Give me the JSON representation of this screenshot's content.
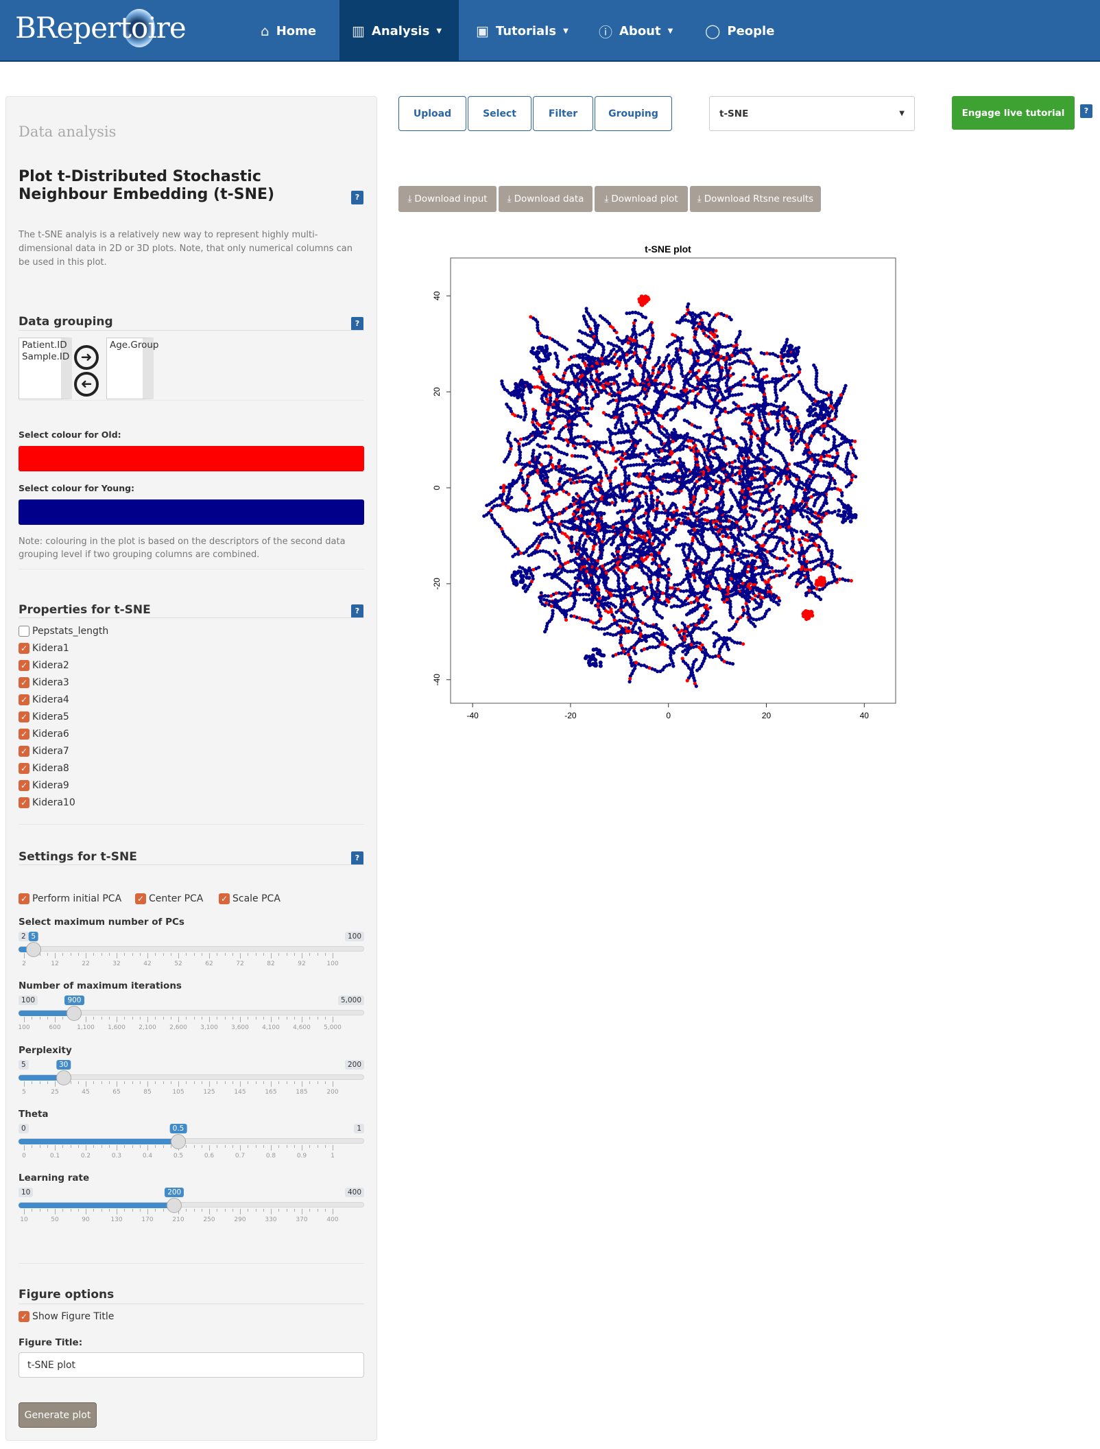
{
  "nav": {
    "brand": "BRepertoire",
    "brand_left": "BRepert",
    "brand_right": "ire",
    "items": [
      {
        "label": "Home",
        "icon": "home-icon",
        "dropdown": false
      },
      {
        "label": "Analysis",
        "icon": "bar-chart-icon",
        "dropdown": true,
        "active": true
      },
      {
        "label": "Tutorials",
        "icon": "film-icon",
        "dropdown": true
      },
      {
        "label": "About",
        "icon": "info-icon",
        "dropdown": true
      },
      {
        "label": "People",
        "icon": "user-icon",
        "dropdown": false
      }
    ],
    "colors": {
      "bar": "#2a65a3",
      "active": "#0a3f70"
    }
  },
  "sidebar": {
    "heading": "Data analysis",
    "title": "Plot t-Distributed Stochastic Neighbour Embedding (t-SNE)",
    "help": "?",
    "description": "The t-SNE analyis is a relatively new way to represent highly multi-dimensional data in 2D or 3D plots. Note, that only numerical columns can be used in this plot.",
    "grouping": {
      "header": "Data grouping",
      "available": [
        "Patient.ID",
        "Sample.ID"
      ],
      "selected": [
        "Age.Group"
      ],
      "colour_old_label": "Select colour for Old:",
      "colour_old": "#ff0000",
      "colour_young_label": "Select colour for Young:",
      "colour_young": "#00008b",
      "note": "Note: colouring in the plot is based on the descriptors of the second data grouping level if two grouping columns are combined."
    },
    "properties": {
      "header": "Properties for t-SNE",
      "items": [
        {
          "label": "Pepstats_length",
          "checked": false
        },
        {
          "label": "Kidera1",
          "checked": true
        },
        {
          "label": "Kidera2",
          "checked": true
        },
        {
          "label": "Kidera3",
          "checked": true
        },
        {
          "label": "Kidera4",
          "checked": true
        },
        {
          "label": "Kidera5",
          "checked": true
        },
        {
          "label": "Kidera6",
          "checked": true
        },
        {
          "label": "Kidera7",
          "checked": true
        },
        {
          "label": "Kidera8",
          "checked": true
        },
        {
          "label": "Kidera9",
          "checked": true
        },
        {
          "label": "Kidera10",
          "checked": true
        }
      ]
    },
    "settings": {
      "header": "Settings for t-SNE",
      "checks": [
        {
          "label": "Perform initial PCA",
          "checked": true
        },
        {
          "label": "Center PCA",
          "checked": true
        },
        {
          "label": "Scale PCA",
          "checked": true
        }
      ],
      "sliders": [
        {
          "label": "Select maximum number of PCs",
          "min": 2,
          "max": 100,
          "value": 5,
          "min_text": "2",
          "max_text": "100",
          "value_text": "5",
          "ticks": [
            "2",
            "12",
            "22",
            "32",
            "42",
            "52",
            "62",
            "72",
            "82",
            "92",
            "100"
          ]
        },
        {
          "label": "Number of maximum iterations",
          "min": 100,
          "max": 5000,
          "value": 900,
          "min_text": "100",
          "max_text": "5,000",
          "value_text": "900",
          "ticks": [
            "100",
            "600",
            "1,100",
            "1,600",
            "2,100",
            "2,600",
            "3,100",
            "3,600",
            "4,100",
            "4,600",
            "5,000"
          ]
        },
        {
          "label": "Perplexity",
          "min": 5,
          "max": 200,
          "value": 30,
          "min_text": "5",
          "max_text": "200",
          "value_text": "30",
          "ticks": [
            "5",
            "25",
            "45",
            "65",
            "85",
            "105",
            "125",
            "145",
            "165",
            "185",
            "200"
          ]
        },
        {
          "label": "Theta",
          "min": 0,
          "max": 1,
          "value": 0.5,
          "min_text": "0",
          "max_text": "1",
          "value_text": "0.5",
          "ticks": [
            "0",
            "0.1",
            "0.2",
            "0.3",
            "0.4",
            "0.5",
            "0.6",
            "0.7",
            "0.8",
            "0.9",
            "1"
          ]
        },
        {
          "label": "Learning rate",
          "min": 10,
          "max": 400,
          "value": 200,
          "min_text": "10",
          "max_text": "400",
          "value_text": "200",
          "ticks": [
            "10",
            "50",
            "90",
            "130",
            "170",
            "210",
            "250",
            "290",
            "330",
            "370",
            "400"
          ]
        }
      ]
    },
    "figure": {
      "header": "Figure options",
      "show_title_label": "Show Figure Title",
      "show_title": true,
      "title_label": "Figure Title:",
      "title_value": "t-SNE plot",
      "generate": "Generate plot"
    }
  },
  "main": {
    "tabs": [
      "Upload",
      "Select",
      "Filter",
      "Grouping"
    ],
    "plot_type": "t-SNE",
    "tutorial": "Engage live tutorial",
    "help": "?",
    "downloads": [
      "Download input",
      "Download data",
      "Download plot",
      "Download Rtsne results"
    ]
  },
  "chart_data": {
    "type": "scatter",
    "title": "t-SNE plot",
    "xlabel": "",
    "ylabel": "",
    "xlim": [
      -44.5,
      46.4
    ],
    "ylim": [
      -44.9,
      47.9
    ],
    "xticks": [
      -40,
      -20,
      0,
      20,
      40
    ],
    "yticks": [
      -40,
      -20,
      0,
      20,
      40
    ],
    "grid": false,
    "legend": "none",
    "series": [
      {
        "color": "#ff0000",
        "share": 0.15
      },
      {
        "color": "#00008b",
        "share": 0.85
      }
    ],
    "cloud": {
      "center": [
        0,
        0
      ],
      "radius": 35
    },
    "dense_clusters": [
      {
        "x": -26,
        "y": 28,
        "color": "#00008b"
      },
      {
        "x": 25,
        "y": 28,
        "color": "#00008b"
      },
      {
        "x": -30,
        "y": 20.5,
        "color": "#00008b"
      },
      {
        "x": 30.5,
        "y": 16,
        "color": "#00008b"
      },
      {
        "x": -30,
        "y": -19,
        "color": "#00008b"
      },
      {
        "x": 31,
        "y": -19.5,
        "color": "#ff0000"
      },
      {
        "x": 28.5,
        "y": -26.5,
        "color": "#ff0000"
      },
      {
        "x": -5,
        "y": 39,
        "color": "#ff0000"
      },
      {
        "x": -15,
        "y": -35.5,
        "color": "#00008b"
      },
      {
        "x": 36.5,
        "y": -5.5,
        "color": "#00008b"
      }
    ]
  }
}
